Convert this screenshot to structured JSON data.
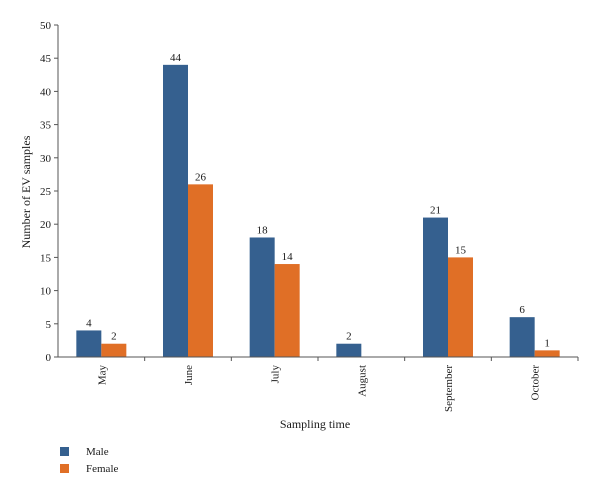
{
  "chart_data": {
    "type": "bar",
    "title": "",
    "xlabel": "Sampling time",
    "ylabel": "Number of EV samples",
    "ylim": [
      0,
      50
    ],
    "yticks": [
      0,
      5,
      10,
      15,
      20,
      25,
      30,
      35,
      40,
      45,
      50
    ],
    "categories": [
      "May",
      "June",
      "July",
      "August",
      "September",
      "October"
    ],
    "series": [
      {
        "name": "Male",
        "color": "#35608f",
        "values": [
          4,
          44,
          18,
          2,
          21,
          6
        ]
      },
      {
        "name": "Female",
        "color": "#e06f26",
        "values": [
          2,
          26,
          14,
          null,
          15,
          1
        ]
      }
    ],
    "data_labels": true,
    "grid": false,
    "legend_position": "bottom-left"
  }
}
